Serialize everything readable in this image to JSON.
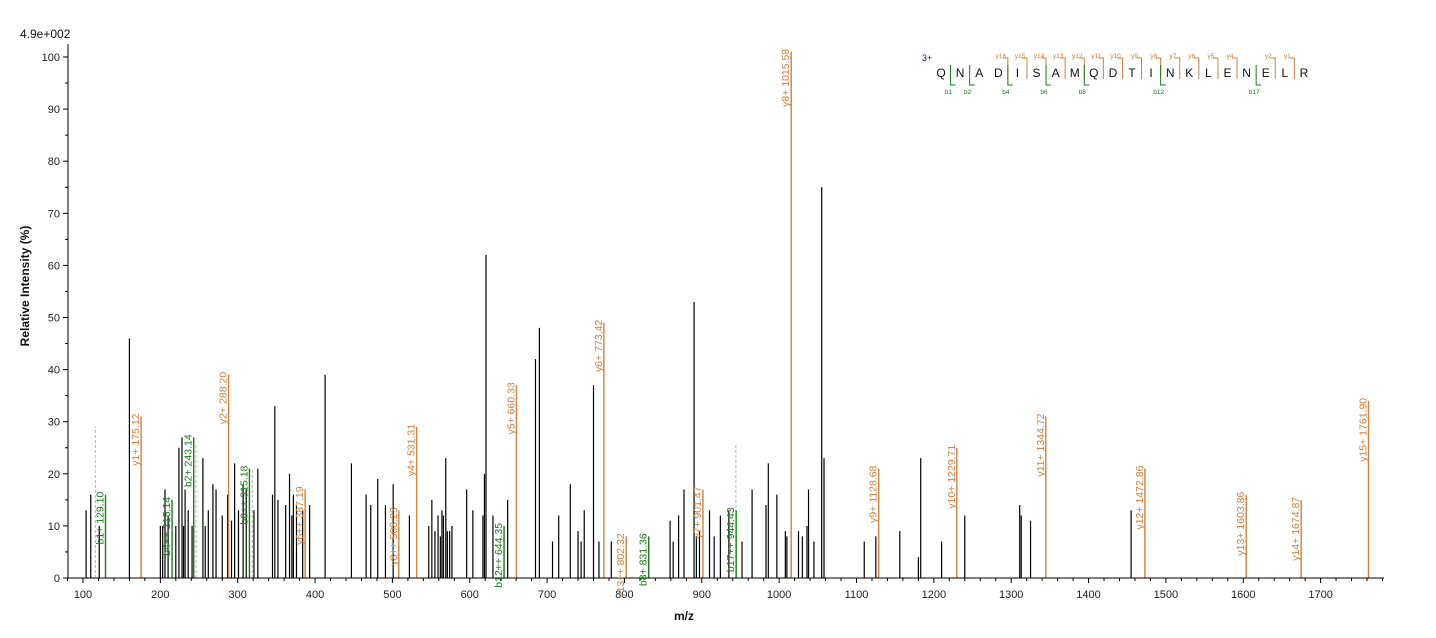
{
  "chart_data": {
    "type": "bar",
    "title": "",
    "scale_label": "4.9e+002",
    "xlabel": "m/z",
    "ylabel": "Relative   Intensity (%)",
    "xlim": [
      80,
      1790
    ],
    "ylim": [
      0,
      102
    ],
    "x_ticks": [
      100,
      200,
      300,
      400,
      500,
      600,
      700,
      800,
      900,
      1000,
      1100,
      1200,
      1300,
      1400,
      1500,
      1600,
      1700
    ],
    "y_ticks": [
      0,
      10,
      20,
      30,
      40,
      50,
      60,
      70,
      80,
      90,
      100
    ],
    "colors": {
      "unmatched": "#000000",
      "y_ion": "#d08040",
      "b_ion": "#1a7a1a",
      "dashed": "#b8b8b8",
      "charge": "#2020b0"
    },
    "labeled_peaks": [
      {
        "mz": 129.1,
        "intensity": 16,
        "label": "b1+ 129.10",
        "ion": "b"
      },
      {
        "mz": 175.12,
        "intensity": 31,
        "label": "y1+ 175.12",
        "ion": "y"
      },
      {
        "mz": 215.14,
        "intensity": 15,
        "label": "b4++ 215.14",
        "ion": "b"
      },
      {
        "mz": 243.14,
        "intensity": 27,
        "label": "b2+ 243.14",
        "ion": "b"
      },
      {
        "mz": 288.2,
        "intensity": 39,
        "label": "y2+ 288.20",
        "ion": "y"
      },
      {
        "mz": 315.18,
        "intensity": 21,
        "label": "b6++ 315.18",
        "ion": "b"
      },
      {
        "mz": 387.19,
        "intensity": 17,
        "label": "y6++ 387.19",
        "ion": "y"
      },
      {
        "mz": 508.23,
        "intensity": 13,
        "label": "y8++ 508.23",
        "ion": "y"
      },
      {
        "mz": 531.31,
        "intensity": 29,
        "label": "y4+ 531.31",
        "ion": "y"
      },
      {
        "mz": 644.35,
        "intensity": 10,
        "label": "b12++ 644.35",
        "ion": "b"
      },
      {
        "mz": 660.33,
        "intensity": 37,
        "label": "y5+ 660.33",
        "ion": "y"
      },
      {
        "mz": 773.42,
        "intensity": 49,
        "label": "y6+ 773.42",
        "ion": "y"
      },
      {
        "mz": 802.32,
        "intensity": 8,
        "label": "y13++ 802.32",
        "ion": "y"
      },
      {
        "mz": 831.36,
        "intensity": 8,
        "label": "b8+ 831.36",
        "ion": "b"
      },
      {
        "mz": 901.47,
        "intensity": 17,
        "label": "y7+ 901.47",
        "ion": "y"
      },
      {
        "mz": 944.43,
        "intensity": 13,
        "label": "b17++ 944.43",
        "ion": "b"
      },
      {
        "mz": 1015.58,
        "intensity": 101,
        "label": "y8+ 1015.58",
        "ion": "y"
      },
      {
        "mz": 1128.68,
        "intensity": 21,
        "label": "y9+ 1128.68",
        "ion": "y"
      },
      {
        "mz": 1229.71,
        "intensity": 25,
        "label": "y10+ 1229.71",
        "ion": "y"
      },
      {
        "mz": 1344.72,
        "intensity": 31,
        "label": "y11+ 1344.72",
        "ion": "y"
      },
      {
        "mz": 1472.86,
        "intensity": 21,
        "label": "y12+ 1472.86",
        "ion": "y"
      },
      {
        "mz": 1603.86,
        "intensity": 16,
        "label": "y13+ 1603.86",
        "ion": "y"
      },
      {
        "mz": 1674.87,
        "intensity": 15,
        "label": "y14+ 1674.87",
        "ion": "y"
      },
      {
        "mz": 1761.9,
        "intensity": 34,
        "label": "y15+ 1761.90",
        "ion": "y"
      }
    ],
    "dashed_markers": [
      {
        "mz": 116,
        "intensity": 29
      },
      {
        "mz": 246,
        "intensity": 26
      },
      {
        "mz": 319,
        "intensity": 21
      },
      {
        "mz": 944,
        "intensity": 26
      }
    ],
    "unmatched_peaks": [
      [
        104,
        13
      ],
      [
        110,
        16
      ],
      [
        121,
        10
      ],
      [
        160,
        46
      ],
      [
        200,
        10
      ],
      [
        203,
        10
      ],
      [
        206,
        17
      ],
      [
        210,
        12
      ],
      [
        220,
        10
      ],
      [
        224,
        25
      ],
      [
        228,
        27
      ],
      [
        230,
        10
      ],
      [
        232,
        17
      ],
      [
        236,
        13
      ],
      [
        241,
        10
      ],
      [
        255,
        23
      ],
      [
        258,
        10
      ],
      [
        262,
        13
      ],
      [
        268,
        18
      ],
      [
        272,
        17
      ],
      [
        280,
        12
      ],
      [
        287,
        16
      ],
      [
        292,
        11
      ],
      [
        296,
        22
      ],
      [
        301,
        13
      ],
      [
        307,
        18
      ],
      [
        311,
        17
      ],
      [
        321,
        13
      ],
      [
        326,
        21
      ],
      [
        345,
        16
      ],
      [
        348,
        33
      ],
      [
        352,
        15
      ],
      [
        362,
        14
      ],
      [
        367,
        20
      ],
      [
        370,
        12
      ],
      [
        372,
        16
      ],
      [
        376,
        14
      ],
      [
        384,
        13
      ],
      [
        393,
        14
      ],
      [
        413,
        39
      ],
      [
        447,
        22
      ],
      [
        466,
        16
      ],
      [
        472,
        14
      ],
      [
        481,
        19
      ],
      [
        491,
        14
      ],
      [
        501,
        18
      ],
      [
        522,
        12
      ],
      [
        547,
        10
      ],
      [
        551,
        15
      ],
      [
        555,
        9
      ],
      [
        559,
        12
      ],
      [
        562,
        8
      ],
      [
        564,
        13
      ],
      [
        566,
        12
      ],
      [
        569,
        23
      ],
      [
        571,
        9
      ],
      [
        574,
        9
      ],
      [
        577,
        10
      ],
      [
        596,
        17
      ],
      [
        604,
        13
      ],
      [
        617,
        12
      ],
      [
        619,
        20
      ],
      [
        621,
        62
      ],
      [
        630,
        12
      ],
      [
        649,
        15
      ],
      [
        685,
        42
      ],
      [
        690,
        48
      ],
      [
        707,
        7
      ],
      [
        715,
        12
      ],
      [
        730,
        18
      ],
      [
        740,
        9
      ],
      [
        744,
        7
      ],
      [
        748,
        13
      ],
      [
        760,
        37
      ],
      [
        767,
        7
      ],
      [
        783,
        7
      ],
      [
        859,
        11
      ],
      [
        863,
        7
      ],
      [
        870,
        12
      ],
      [
        877,
        17
      ],
      [
        890,
        53
      ],
      [
        893,
        8
      ],
      [
        897,
        9
      ],
      [
        910,
        13
      ],
      [
        916,
        8
      ],
      [
        924,
        12
      ],
      [
        935,
        13
      ],
      [
        952,
        7
      ],
      [
        965,
        17
      ],
      [
        983,
        14
      ],
      [
        986,
        22
      ],
      [
        997,
        16
      ],
      [
        1008,
        9
      ],
      [
        1010,
        8
      ],
      [
        1025,
        9
      ],
      [
        1030,
        8
      ],
      [
        1036,
        10
      ],
      [
        1038,
        17
      ],
      [
        1045,
        7
      ],
      [
        1055,
        75
      ],
      [
        1058,
        23
      ],
      [
        1110,
        7
      ],
      [
        1125,
        8
      ],
      [
        1156,
        9
      ],
      [
        1180,
        4
      ],
      [
        1183,
        23
      ],
      [
        1210,
        7
      ],
      [
        1240,
        12
      ],
      [
        1311,
        14
      ],
      [
        1313,
        12
      ],
      [
        1325,
        11
      ],
      [
        1455,
        13
      ]
    ],
    "sequence": {
      "charge": "3+",
      "residues": [
        "Q",
        "N",
        "A",
        "D",
        "I",
        "S",
        "A",
        "M",
        "Q",
        "D",
        "T",
        "I",
        "N",
        "K",
        "L",
        "E",
        "N",
        "E",
        "L",
        "R"
      ],
      "y_ions": [
        {
          "after": 4,
          "label": "y16"
        },
        {
          "after": 5,
          "label": "y15"
        },
        {
          "after": 6,
          "label": "y14"
        },
        {
          "after": 7,
          "label": "y13"
        },
        {
          "after": 8,
          "label": "y12"
        },
        {
          "after": 9,
          "label": "y11"
        },
        {
          "after": 10,
          "label": "y10"
        },
        {
          "after": 11,
          "label": "y9"
        },
        {
          "after": 12,
          "label": "y8"
        },
        {
          "after": 13,
          "label": "y7"
        },
        {
          "after": 14,
          "label": "y6"
        },
        {
          "after": 15,
          "label": "y5"
        },
        {
          "after": 16,
          "label": "y4"
        },
        {
          "after": 18,
          "label": "y2"
        },
        {
          "after": 19,
          "label": "y1"
        }
      ],
      "b_ions": [
        {
          "after": 1,
          "label": "b1"
        },
        {
          "after": 2,
          "label": "b2"
        },
        {
          "after": 4,
          "label": "b4"
        },
        {
          "after": 6,
          "label": "b6"
        },
        {
          "after": 8,
          "label": "b8"
        },
        {
          "after": 12,
          "label": "b12"
        },
        {
          "after": 17,
          "label": "b17"
        }
      ]
    }
  }
}
